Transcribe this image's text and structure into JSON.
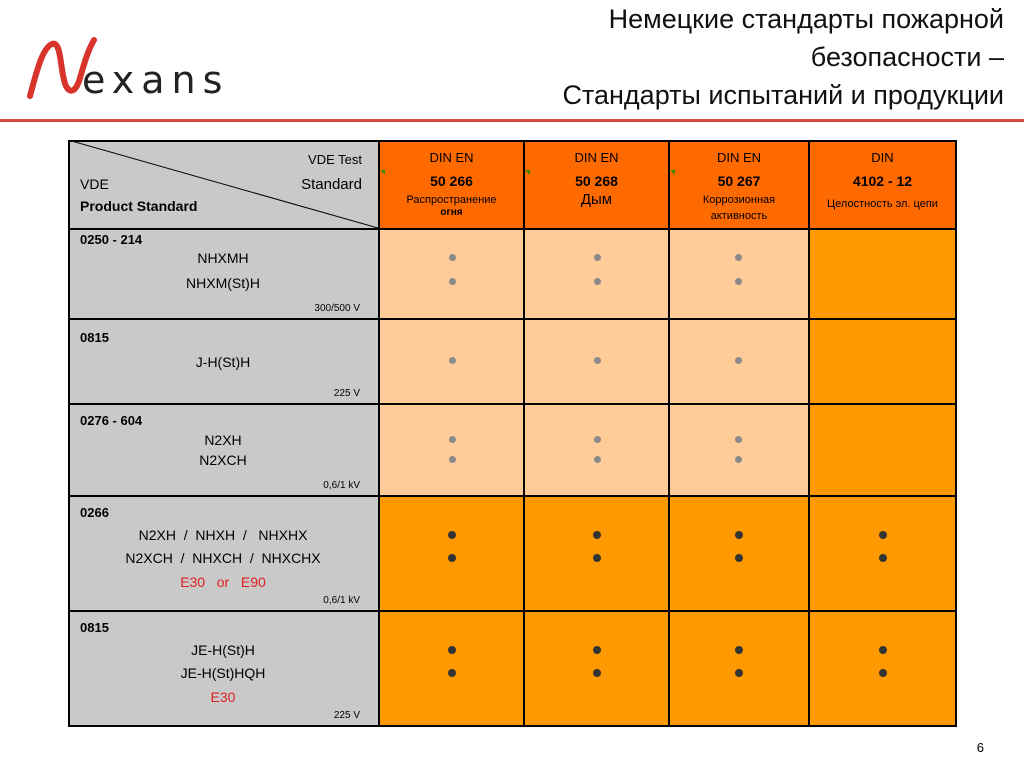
{
  "logo": {
    "initial": "N",
    "rest": "exans"
  },
  "title": {
    "line1": "Немецкие стандарты пожарной",
    "line2": "безопасности –",
    "line3": "Стандарты испытаний и продукции"
  },
  "colors": {
    "header_orange": "#ff6a00",
    "light_cell": "#ffcc99",
    "dark_cell": "#ff9900",
    "grey_cell": "#c9c9c9",
    "rule_red": "#d24a3c"
  },
  "corner": {
    "vde_test": "VDE Test",
    "standard": "Standard",
    "vde": "VDE",
    "product_standard": "Product Standard"
  },
  "columns": [
    {
      "l1": "DIN EN",
      "l2": "50 266",
      "l3": "Распространение",
      "l3b": "огня"
    },
    {
      "l1": "DIN EN",
      "l2": "50 268",
      "l3large": "Дым"
    },
    {
      "l1": "DIN EN",
      "l2": "50 267",
      "l3": "Коррозионная",
      "l3c": "активность"
    },
    {
      "l1": "DIN",
      "l2": "4102 - 12",
      "l3": "Целостность эл. цепи"
    }
  ],
  "rows": [
    {
      "code": "0250 - 214",
      "products": [
        "NHXMH",
        "NHXM(St)H"
      ],
      "voltage": "300/500 V"
    },
    {
      "code": "0815",
      "products": [
        "J-H(St)H"
      ],
      "voltage": "225 V"
    },
    {
      "code": "0276 - 604",
      "products": [
        "N2XH",
        "N2XCH"
      ],
      "voltage": "0,6/1 kV"
    },
    {
      "code": "0266",
      "products": [
        "N2XH  /  NHXH  /   NHXHX",
        "N2XCH  /  NHXCH  /  NHXCHX"
      ],
      "extra": "E30   or   E90",
      "voltage": "0,6/1 kV"
    },
    {
      "code": "0815",
      "products": [
        "JE-H(St)H",
        "JE-H(St)HQH"
      ],
      "extra": "E30",
      "voltage": "225 V"
    }
  ],
  "page_number": "6"
}
